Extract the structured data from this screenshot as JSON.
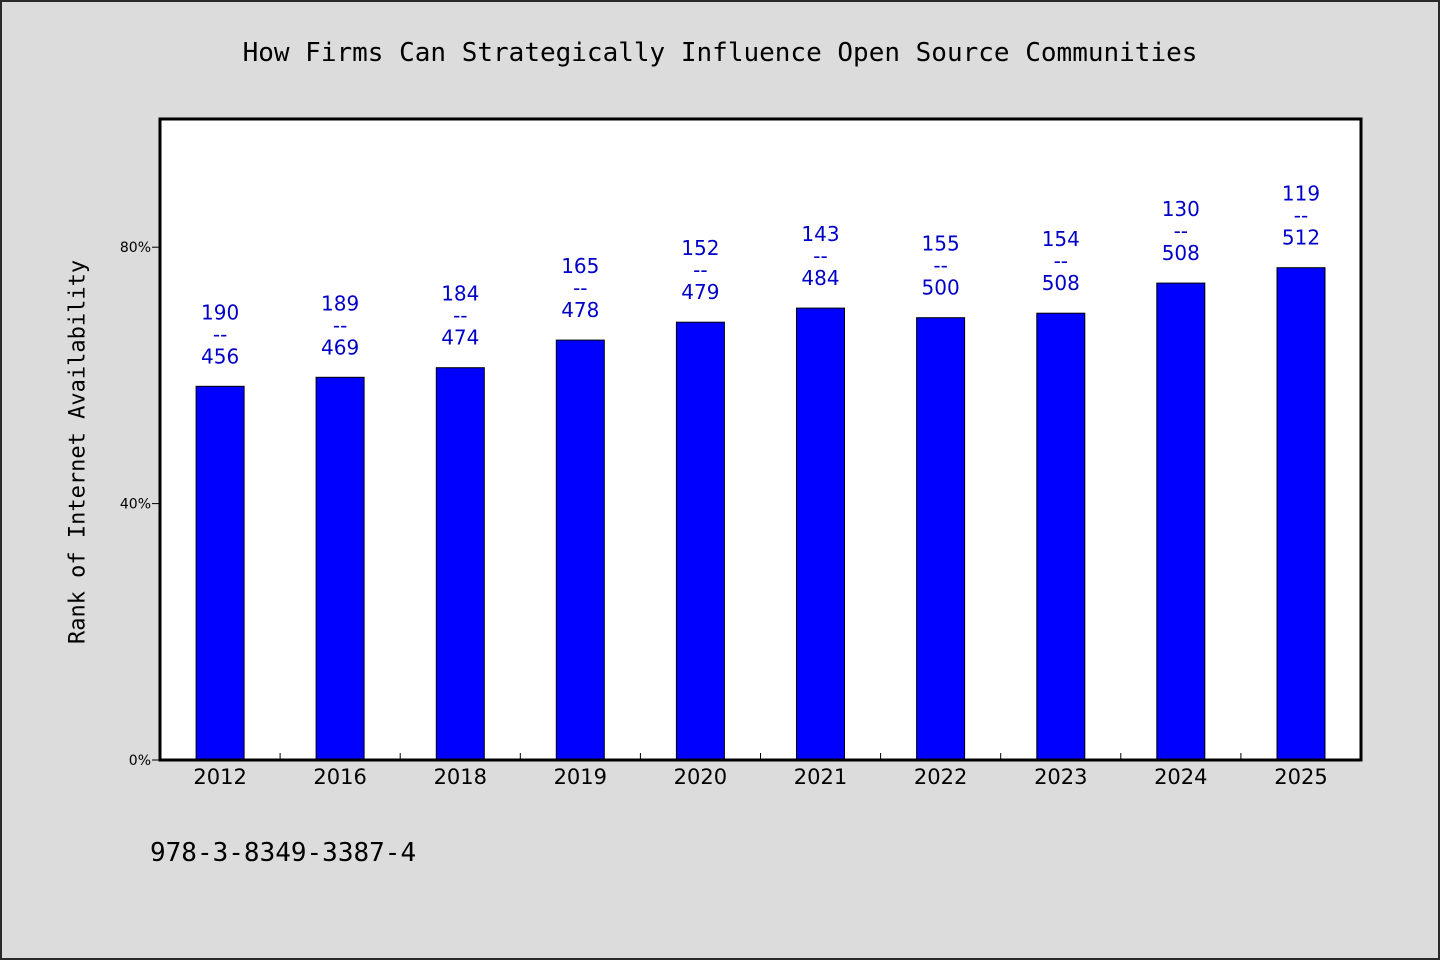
{
  "chart_data": {
    "type": "bar",
    "title": "How Firms Can Strategically Influence Open Source Communities",
    "ylabel": "Rank of Internet Availability",
    "categories": [
      "2012",
      "2016",
      "2018",
      "2019",
      "2020",
      "2021",
      "2022",
      "2023",
      "2024",
      "2025"
    ],
    "values": [
      58.3,
      59.7,
      61.2,
      65.5,
      68.3,
      70.5,
      69.0,
      69.7,
      74.4,
      76.8
    ],
    "ylim": [
      0,
      100
    ],
    "yticks": [
      0,
      40,
      80
    ],
    "ytick_labels": [
      "0%",
      "40%",
      "80%"
    ],
    "data_labels": [
      [
        "190",
        "--",
        "456"
      ],
      [
        "189",
        "--",
        "469"
      ],
      [
        "184",
        "--",
        "474"
      ],
      [
        "165",
        "--",
        "478"
      ],
      [
        "152",
        "--",
        "479"
      ],
      [
        "143",
        "--",
        "484"
      ],
      [
        "155",
        "--",
        "500"
      ],
      [
        "154",
        "--",
        "508"
      ],
      [
        "130",
        "--",
        "508"
      ],
      [
        "119",
        "--",
        "512"
      ]
    ],
    "grid": false,
    "legend": "none",
    "colors": {
      "bar": "#0000ff",
      "data_label": "#0000c8"
    }
  },
  "footer": {
    "code": "978-3-8349-3387-4"
  }
}
